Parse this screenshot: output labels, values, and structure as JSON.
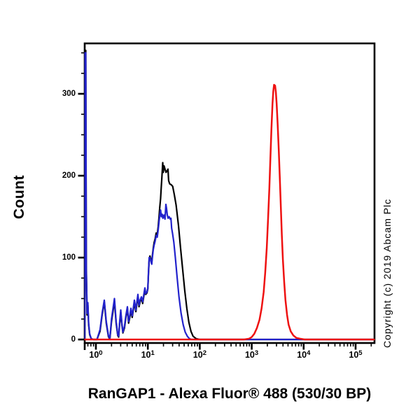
{
  "copyright": "Copyright (c) 2019 Abcam Plc",
  "chart_data": {
    "type": "line",
    "title": "RanGAP1 - Alexa Fluor® 488 (530/30 BP)",
    "xlabel": "RanGAP1 - Alexa Fluor® 488 (530/30 BP)",
    "ylabel": "Count",
    "x_scale": "log10",
    "x_tick_exponents": [
      0,
      1,
      2,
      3,
      4,
      5
    ],
    "xlim_log10": [
      -0.215,
      5.36
    ],
    "y_ticks": [
      0,
      100,
      200,
      300
    ],
    "y_minor_step": 25,
    "ylim": [
      0,
      361
    ],
    "grid": false,
    "legend": "none",
    "series": [
      {
        "name": "black",
        "color": "#000000",
        "width": 2.2,
        "peak": {
          "x_log10": 1.287,
          "count": 216
        },
        "points": [
          [
            -0.215,
            0
          ],
          [
            -0.207,
            353
          ],
          [
            -0.195,
            353
          ],
          [
            -0.185,
            90
          ],
          [
            -0.17,
            30
          ],
          [
            -0.155,
            42
          ],
          [
            -0.14,
            18
          ],
          [
            -0.12,
            6
          ],
          [
            -0.09,
            1
          ],
          [
            -0.05,
            0
          ],
          [
            0.02,
            0
          ],
          [
            0.08,
            10
          ],
          [
            0.12,
            30
          ],
          [
            0.162,
            46
          ],
          [
            0.2,
            20
          ],
          [
            0.24,
            4
          ],
          [
            0.268,
            0
          ],
          [
            0.3,
            22
          ],
          [
            0.357,
            47
          ],
          [
            0.39,
            20
          ],
          [
            0.42,
            5
          ],
          [
            0.438,
            3
          ],
          [
            0.458,
            20
          ],
          [
            0.478,
            33
          ],
          [
            0.5,
            18
          ],
          [
            0.52,
            8
          ],
          [
            0.55,
            14
          ],
          [
            0.58,
            28
          ],
          [
            0.606,
            38
          ],
          [
            0.63,
            20
          ],
          [
            0.65,
            26
          ],
          [
            0.674,
            35
          ],
          [
            0.7,
            27
          ],
          [
            0.72,
            36
          ],
          [
            0.741,
            45
          ],
          [
            0.77,
            34
          ],
          [
            0.79,
            44
          ],
          [
            0.808,
            52
          ],
          [
            0.83,
            40
          ],
          [
            0.85,
            46
          ],
          [
            0.876,
            50
          ],
          [
            0.9,
            44
          ],
          [
            0.92,
            52
          ],
          [
            0.943,
            61
          ],
          [
            0.96,
            55
          ],
          [
            0.984,
            57
          ],
          [
            1.0,
            62
          ],
          [
            1.012,
            80
          ],
          [
            1.025,
            98
          ],
          [
            1.04,
            102
          ],
          [
            1.06,
            97
          ],
          [
            1.075,
            95
          ],
          [
            1.09,
            104
          ],
          [
            1.105,
            112
          ],
          [
            1.12,
            118
          ],
          [
            1.14,
            123
          ],
          [
            1.16,
            130
          ],
          [
            1.18,
            128
          ],
          [
            1.2,
            138
          ],
          [
            1.215,
            150
          ],
          [
            1.23,
            162
          ],
          [
            1.245,
            172
          ],
          [
            1.258,
            185
          ],
          [
            1.27,
            197
          ],
          [
            1.287,
            216
          ],
          [
            1.298,
            204
          ],
          [
            1.312,
            212
          ],
          [
            1.33,
            208
          ],
          [
            1.35,
            204
          ],
          [
            1.37,
            206
          ],
          [
            1.388,
            208
          ],
          [
            1.4,
            194
          ],
          [
            1.42,
            190
          ],
          [
            1.45,
            189
          ],
          [
            1.478,
            187
          ],
          [
            1.51,
            177
          ],
          [
            1.545,
            164
          ],
          [
            1.59,
            139
          ],
          [
            1.63,
            112
          ],
          [
            1.67,
            86
          ],
          [
            1.71,
            60
          ],
          [
            1.75,
            38
          ],
          [
            1.79,
            21
          ],
          [
            1.83,
            10
          ],
          [
            1.87,
            4
          ],
          [
            1.93,
            1
          ],
          [
            2.0,
            0
          ],
          [
            5.36,
            0
          ]
        ]
      },
      {
        "name": "blue",
        "color": "#2222cc",
        "width": 2.2,
        "peak": {
          "x_log10": 1.348,
          "count": 165
        },
        "points": [
          [
            -0.215,
            0
          ],
          [
            -0.207,
            350
          ],
          [
            -0.195,
            350
          ],
          [
            -0.185,
            85
          ],
          [
            -0.17,
            32
          ],
          [
            -0.155,
            45
          ],
          [
            -0.14,
            20
          ],
          [
            -0.12,
            7
          ],
          [
            -0.09,
            1
          ],
          [
            -0.05,
            0
          ],
          [
            0.02,
            0
          ],
          [
            0.08,
            12
          ],
          [
            0.12,
            32
          ],
          [
            0.162,
            48
          ],
          [
            0.2,
            22
          ],
          [
            0.24,
            5
          ],
          [
            0.268,
            1
          ],
          [
            0.3,
            25
          ],
          [
            0.357,
            50
          ],
          [
            0.39,
            22
          ],
          [
            0.42,
            6
          ],
          [
            0.438,
            4
          ],
          [
            0.458,
            22
          ],
          [
            0.478,
            36
          ],
          [
            0.5,
            20
          ],
          [
            0.52,
            9
          ],
          [
            0.55,
            16
          ],
          [
            0.58,
            30
          ],
          [
            0.606,
            40
          ],
          [
            0.63,
            22
          ],
          [
            0.65,
            28
          ],
          [
            0.674,
            38
          ],
          [
            0.7,
            29
          ],
          [
            0.72,
            38
          ],
          [
            0.741,
            48
          ],
          [
            0.77,
            36
          ],
          [
            0.79,
            46
          ],
          [
            0.808,
            55
          ],
          [
            0.83,
            42
          ],
          [
            0.85,
            48
          ],
          [
            0.876,
            52
          ],
          [
            0.9,
            46
          ],
          [
            0.92,
            54
          ],
          [
            0.943,
            63
          ],
          [
            0.96,
            56
          ],
          [
            0.984,
            58
          ],
          [
            1.0,
            63
          ],
          [
            1.012,
            82
          ],
          [
            1.025,
            100
          ],
          [
            1.04,
            100
          ],
          [
            1.06,
            95
          ],
          [
            1.075,
            92
          ],
          [
            1.09,
            102
          ],
          [
            1.105,
            110
          ],
          [
            1.12,
            115
          ],
          [
            1.14,
            120
          ],
          [
            1.16,
            127
          ],
          [
            1.18,
            125
          ],
          [
            1.2,
            134
          ],
          [
            1.215,
            144
          ],
          [
            1.23,
            152
          ],
          [
            1.245,
            158
          ],
          [
            1.26,
            150
          ],
          [
            1.275,
            153
          ],
          [
            1.29,
            148
          ],
          [
            1.31,
            152
          ],
          [
            1.33,
            147
          ],
          [
            1.348,
            165
          ],
          [
            1.36,
            160
          ],
          [
            1.375,
            152
          ],
          [
            1.39,
            148
          ],
          [
            1.41,
            150
          ],
          [
            1.43,
            147
          ],
          [
            1.445,
            148
          ],
          [
            1.458,
            136
          ],
          [
            1.475,
            130
          ],
          [
            1.5,
            119
          ],
          [
            1.53,
            100
          ],
          [
            1.56,
            78
          ],
          [
            1.6,
            52
          ],
          [
            1.64,
            32
          ],
          [
            1.68,
            18
          ],
          [
            1.72,
            9
          ],
          [
            1.76,
            4
          ],
          [
            1.8,
            1
          ],
          [
            1.84,
            0
          ],
          [
            5.36,
            0
          ]
        ]
      },
      {
        "name": "red",
        "color": "#ee1111",
        "width": 2.5,
        "peak": {
          "x_log10": 3.43,
          "count": 311
        },
        "points": [
          [
            -0.215,
            0
          ],
          [
            2.85,
            0
          ],
          [
            2.95,
            1
          ],
          [
            3.0,
            3
          ],
          [
            3.05,
            7
          ],
          [
            3.1,
            14
          ],
          [
            3.15,
            24
          ],
          [
            3.19,
            38
          ],
          [
            3.23,
            58
          ],
          [
            3.26,
            82
          ],
          [
            3.29,
            112
          ],
          [
            3.315,
            148
          ],
          [
            3.34,
            185
          ],
          [
            3.36,
            222
          ],
          [
            3.38,
            258
          ],
          [
            3.4,
            288
          ],
          [
            3.415,
            303
          ],
          [
            3.43,
            311
          ],
          [
            3.45,
            310
          ],
          [
            3.465,
            302
          ],
          [
            3.48,
            288
          ],
          [
            3.5,
            262
          ],
          [
            3.52,
            232
          ],
          [
            3.54,
            198
          ],
          [
            3.56,
            162
          ],
          [
            3.58,
            128
          ],
          [
            3.6,
            98
          ],
          [
            3.625,
            70
          ],
          [
            3.65,
            48
          ],
          [
            3.68,
            30
          ],
          [
            3.71,
            18
          ],
          [
            3.75,
            10
          ],
          [
            3.8,
            5
          ],
          [
            3.86,
            2
          ],
          [
            3.93,
            1
          ],
          [
            4.02,
            0
          ],
          [
            5.36,
            0
          ]
        ]
      }
    ]
  }
}
